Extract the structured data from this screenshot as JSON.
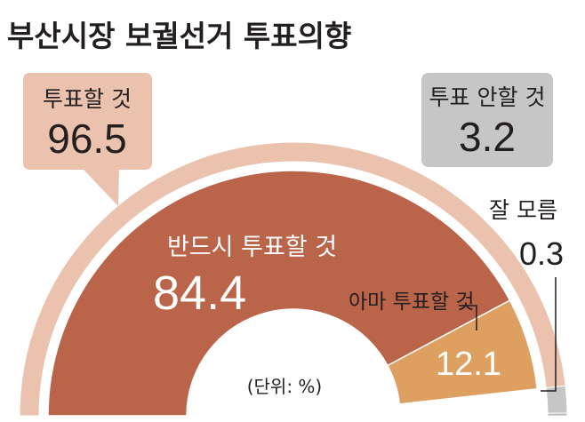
{
  "title": "부산시장 보궐선거 투표의향",
  "unit_note": "(단위: %)",
  "colors": {
    "will_vote": "#ebc2ae",
    "definitely": "#ba6449",
    "probably": "#dea060",
    "will_not": "#c6c6c6",
    "dont_know": "#b5b5b5"
  },
  "chart_data": {
    "type": "pie",
    "subtype": "half-donut-nested",
    "title": "부산시장 보궐선거 투표의향",
    "unit": "%",
    "outer": [
      {
        "label": "투표할 것",
        "value": 96.5
      },
      {
        "label": "투표 안할 것",
        "value": 3.2
      },
      {
        "label": "잘 모름",
        "value": 0.3
      }
    ],
    "inner": [
      {
        "label": "반드시 투표할 것",
        "value": 84.4
      },
      {
        "label": "아마 투표할 것",
        "value": 12.1
      }
    ]
  }
}
